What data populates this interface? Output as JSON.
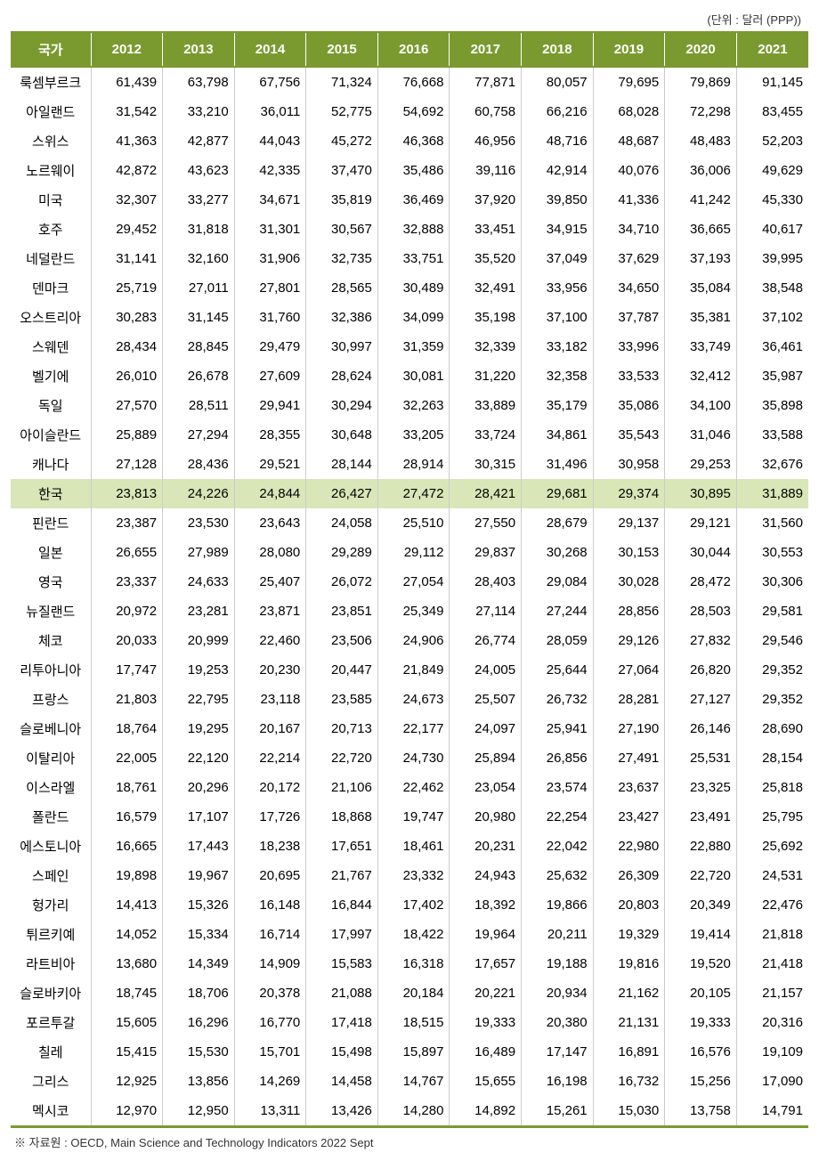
{
  "table": {
    "type": "table",
    "unit_label": "(단위 : 달러 (PPP))",
    "header_bg_color": "#7a9a2f",
    "header_text_color": "#ffffff",
    "highlight_bg_color": "#d9e6b8",
    "border_color": "#cccccc",
    "bottom_border_color": "#7a9a2f",
    "header_fontsize": 15,
    "cell_fontsize": 15,
    "columns": [
      "국가",
      "2012",
      "2013",
      "2014",
      "2015",
      "2016",
      "2017",
      "2018",
      "2019",
      "2020",
      "2021"
    ],
    "highlight_index": 14,
    "rows": [
      {
        "c": "룩셈부르크",
        "v": [
          "61,439",
          "63,798",
          "67,756",
          "71,324",
          "76,668",
          "77,871",
          "80,057",
          "79,695",
          "79,869",
          "91,145"
        ]
      },
      {
        "c": "아일랜드",
        "v": [
          "31,542",
          "33,210",
          "36,011",
          "52,775",
          "54,692",
          "60,758",
          "66,216",
          "68,028",
          "72,298",
          "83,455"
        ]
      },
      {
        "c": "스위스",
        "v": [
          "41,363",
          "42,877",
          "44,043",
          "45,272",
          "46,368",
          "46,956",
          "48,716",
          "48,687",
          "48,483",
          "52,203"
        ]
      },
      {
        "c": "노르웨이",
        "v": [
          "42,872",
          "43,623",
          "42,335",
          "37,470",
          "35,486",
          "39,116",
          "42,914",
          "40,076",
          "36,006",
          "49,629"
        ]
      },
      {
        "c": "미국",
        "v": [
          "32,307",
          "33,277",
          "34,671",
          "35,819",
          "36,469",
          "37,920",
          "39,850",
          "41,336",
          "41,242",
          "45,330"
        ]
      },
      {
        "c": "호주",
        "v": [
          "29,452",
          "31,818",
          "31,301",
          "30,567",
          "32,888",
          "33,451",
          "34,915",
          "34,710",
          "36,665",
          "40,617"
        ]
      },
      {
        "c": "네덜란드",
        "v": [
          "31,141",
          "32,160",
          "31,906",
          "32,735",
          "33,751",
          "35,520",
          "37,049",
          "37,629",
          "37,193",
          "39,995"
        ]
      },
      {
        "c": "덴마크",
        "v": [
          "25,719",
          "27,011",
          "27,801",
          "28,565",
          "30,489",
          "32,491",
          "33,956",
          "34,650",
          "35,084",
          "38,548"
        ]
      },
      {
        "c": "오스트리아",
        "v": [
          "30,283",
          "31,145",
          "31,760",
          "32,386",
          "34,099",
          "35,198",
          "37,100",
          "37,787",
          "35,381",
          "37,102"
        ]
      },
      {
        "c": "스웨덴",
        "v": [
          "28,434",
          "28,845",
          "29,479",
          "30,997",
          "31,359",
          "32,339",
          "33,182",
          "33,996",
          "33,749",
          "36,461"
        ]
      },
      {
        "c": "벨기에",
        "v": [
          "26,010",
          "26,678",
          "27,609",
          "28,624",
          "30,081",
          "31,220",
          "32,358",
          "33,533",
          "32,412",
          "35,987"
        ]
      },
      {
        "c": "독일",
        "v": [
          "27,570",
          "28,511",
          "29,941",
          "30,294",
          "32,263",
          "33,889",
          "35,179",
          "35,086",
          "34,100",
          "35,898"
        ]
      },
      {
        "c": "아이슬란드",
        "v": [
          "25,889",
          "27,294",
          "28,355",
          "30,648",
          "33,205",
          "33,724",
          "34,861",
          "35,543",
          "31,046",
          "33,588"
        ]
      },
      {
        "c": "캐나다",
        "v": [
          "27,128",
          "28,436",
          "29,521",
          "28,144",
          "28,914",
          "30,315",
          "31,496",
          "30,958",
          "29,253",
          "32,676"
        ]
      },
      {
        "c": "한국",
        "v": [
          "23,813",
          "24,226",
          "24,844",
          "26,427",
          "27,472",
          "28,421",
          "29,681",
          "29,374",
          "30,895",
          "31,889"
        ]
      },
      {
        "c": "핀란드",
        "v": [
          "23,387",
          "23,530",
          "23,643",
          "24,058",
          "25,510",
          "27,550",
          "28,679",
          "29,137",
          "29,121",
          "31,560"
        ]
      },
      {
        "c": "일본",
        "v": [
          "26,655",
          "27,989",
          "28,080",
          "29,289",
          "29,112",
          "29,837",
          "30,268",
          "30,153",
          "30,044",
          "30,553"
        ]
      },
      {
        "c": "영국",
        "v": [
          "23,337",
          "24,633",
          "25,407",
          "26,072",
          "27,054",
          "28,403",
          "29,084",
          "30,028",
          "28,472",
          "30,306"
        ]
      },
      {
        "c": "뉴질랜드",
        "v": [
          "20,972",
          "23,281",
          "23,871",
          "23,851",
          "25,349",
          "27,114",
          "27,244",
          "28,856",
          "28,503",
          "29,581"
        ]
      },
      {
        "c": "체코",
        "v": [
          "20,033",
          "20,999",
          "22,460",
          "23,506",
          "24,906",
          "26,774",
          "28,059",
          "29,126",
          "27,832",
          "29,546"
        ]
      },
      {
        "c": "리투아니아",
        "v": [
          "17,747",
          "19,253",
          "20,230",
          "20,447",
          "21,849",
          "24,005",
          "25,644",
          "27,064",
          "26,820",
          "29,352"
        ]
      },
      {
        "c": "프랑스",
        "v": [
          "21,803",
          "22,795",
          "23,118",
          "23,585",
          "24,673",
          "25,507",
          "26,732",
          "28,281",
          "27,127",
          "29,352"
        ]
      },
      {
        "c": "슬로베니아",
        "v": [
          "18,764",
          "19,295",
          "20,167",
          "20,713",
          "22,177",
          "24,097",
          "25,941",
          "27,190",
          "26,146",
          "28,690"
        ]
      },
      {
        "c": "이탈리아",
        "v": [
          "22,005",
          "22,120",
          "22,214",
          "22,720",
          "24,730",
          "25,894",
          "26,856",
          "27,491",
          "25,531",
          "28,154"
        ]
      },
      {
        "c": "이스라엘",
        "v": [
          "18,761",
          "20,296",
          "20,172",
          "21,106",
          "22,462",
          "23,054",
          "23,574",
          "23,637",
          "23,325",
          "25,818"
        ]
      },
      {
        "c": "폴란드",
        "v": [
          "16,579",
          "17,107",
          "17,726",
          "18,868",
          "19,747",
          "20,980",
          "22,254",
          "23,427",
          "23,491",
          "25,795"
        ]
      },
      {
        "c": "에스토니아",
        "v": [
          "16,665",
          "17,443",
          "18,238",
          "17,651",
          "18,461",
          "20,231",
          "22,042",
          "22,980",
          "22,880",
          "25,692"
        ]
      },
      {
        "c": "스페인",
        "v": [
          "19,898",
          "19,967",
          "20,695",
          "21,767",
          "23,332",
          "24,943",
          "25,632",
          "26,309",
          "22,720",
          "24,531"
        ]
      },
      {
        "c": "헝가리",
        "v": [
          "14,413",
          "15,326",
          "16,148",
          "16,844",
          "17,402",
          "18,392",
          "19,866",
          "20,803",
          "20,349",
          "22,476"
        ]
      },
      {
        "c": "튀르키예",
        "v": [
          "14,052",
          "15,334",
          "16,714",
          "17,997",
          "18,422",
          "19,964",
          "20,211",
          "19,329",
          "19,414",
          "21,818"
        ]
      },
      {
        "c": "라트비아",
        "v": [
          "13,680",
          "14,349",
          "14,909",
          "15,583",
          "16,318",
          "17,657",
          "19,188",
          "19,816",
          "19,520",
          "21,418"
        ]
      },
      {
        "c": "슬로바키아",
        "v": [
          "18,745",
          "18,706",
          "20,378",
          "21,088",
          "20,184",
          "20,221",
          "20,934",
          "21,162",
          "20,105",
          "21,157"
        ]
      },
      {
        "c": "포르투갈",
        "v": [
          "15,605",
          "16,296",
          "16,770",
          "17,418",
          "18,515",
          "19,333",
          "20,380",
          "21,131",
          "19,333",
          "20,316"
        ]
      },
      {
        "c": "칠레",
        "v": [
          "15,415",
          "15,530",
          "15,701",
          "15,498",
          "15,897",
          "16,489",
          "17,147",
          "16,891",
          "16,576",
          "19,109"
        ]
      },
      {
        "c": "그리스",
        "v": [
          "12,925",
          "13,856",
          "14,269",
          "14,458",
          "14,767",
          "15,655",
          "16,198",
          "16,732",
          "15,256",
          "17,090"
        ]
      },
      {
        "c": "멕시코",
        "v": [
          "12,970",
          "12,950",
          "13,311",
          "13,426",
          "14,280",
          "14,892",
          "15,261",
          "15,030",
          "13,758",
          "14,791"
        ]
      }
    ]
  },
  "source_note": "※ 자료원 : OECD, Main Science and Technology Indicators 2022 Sept"
}
